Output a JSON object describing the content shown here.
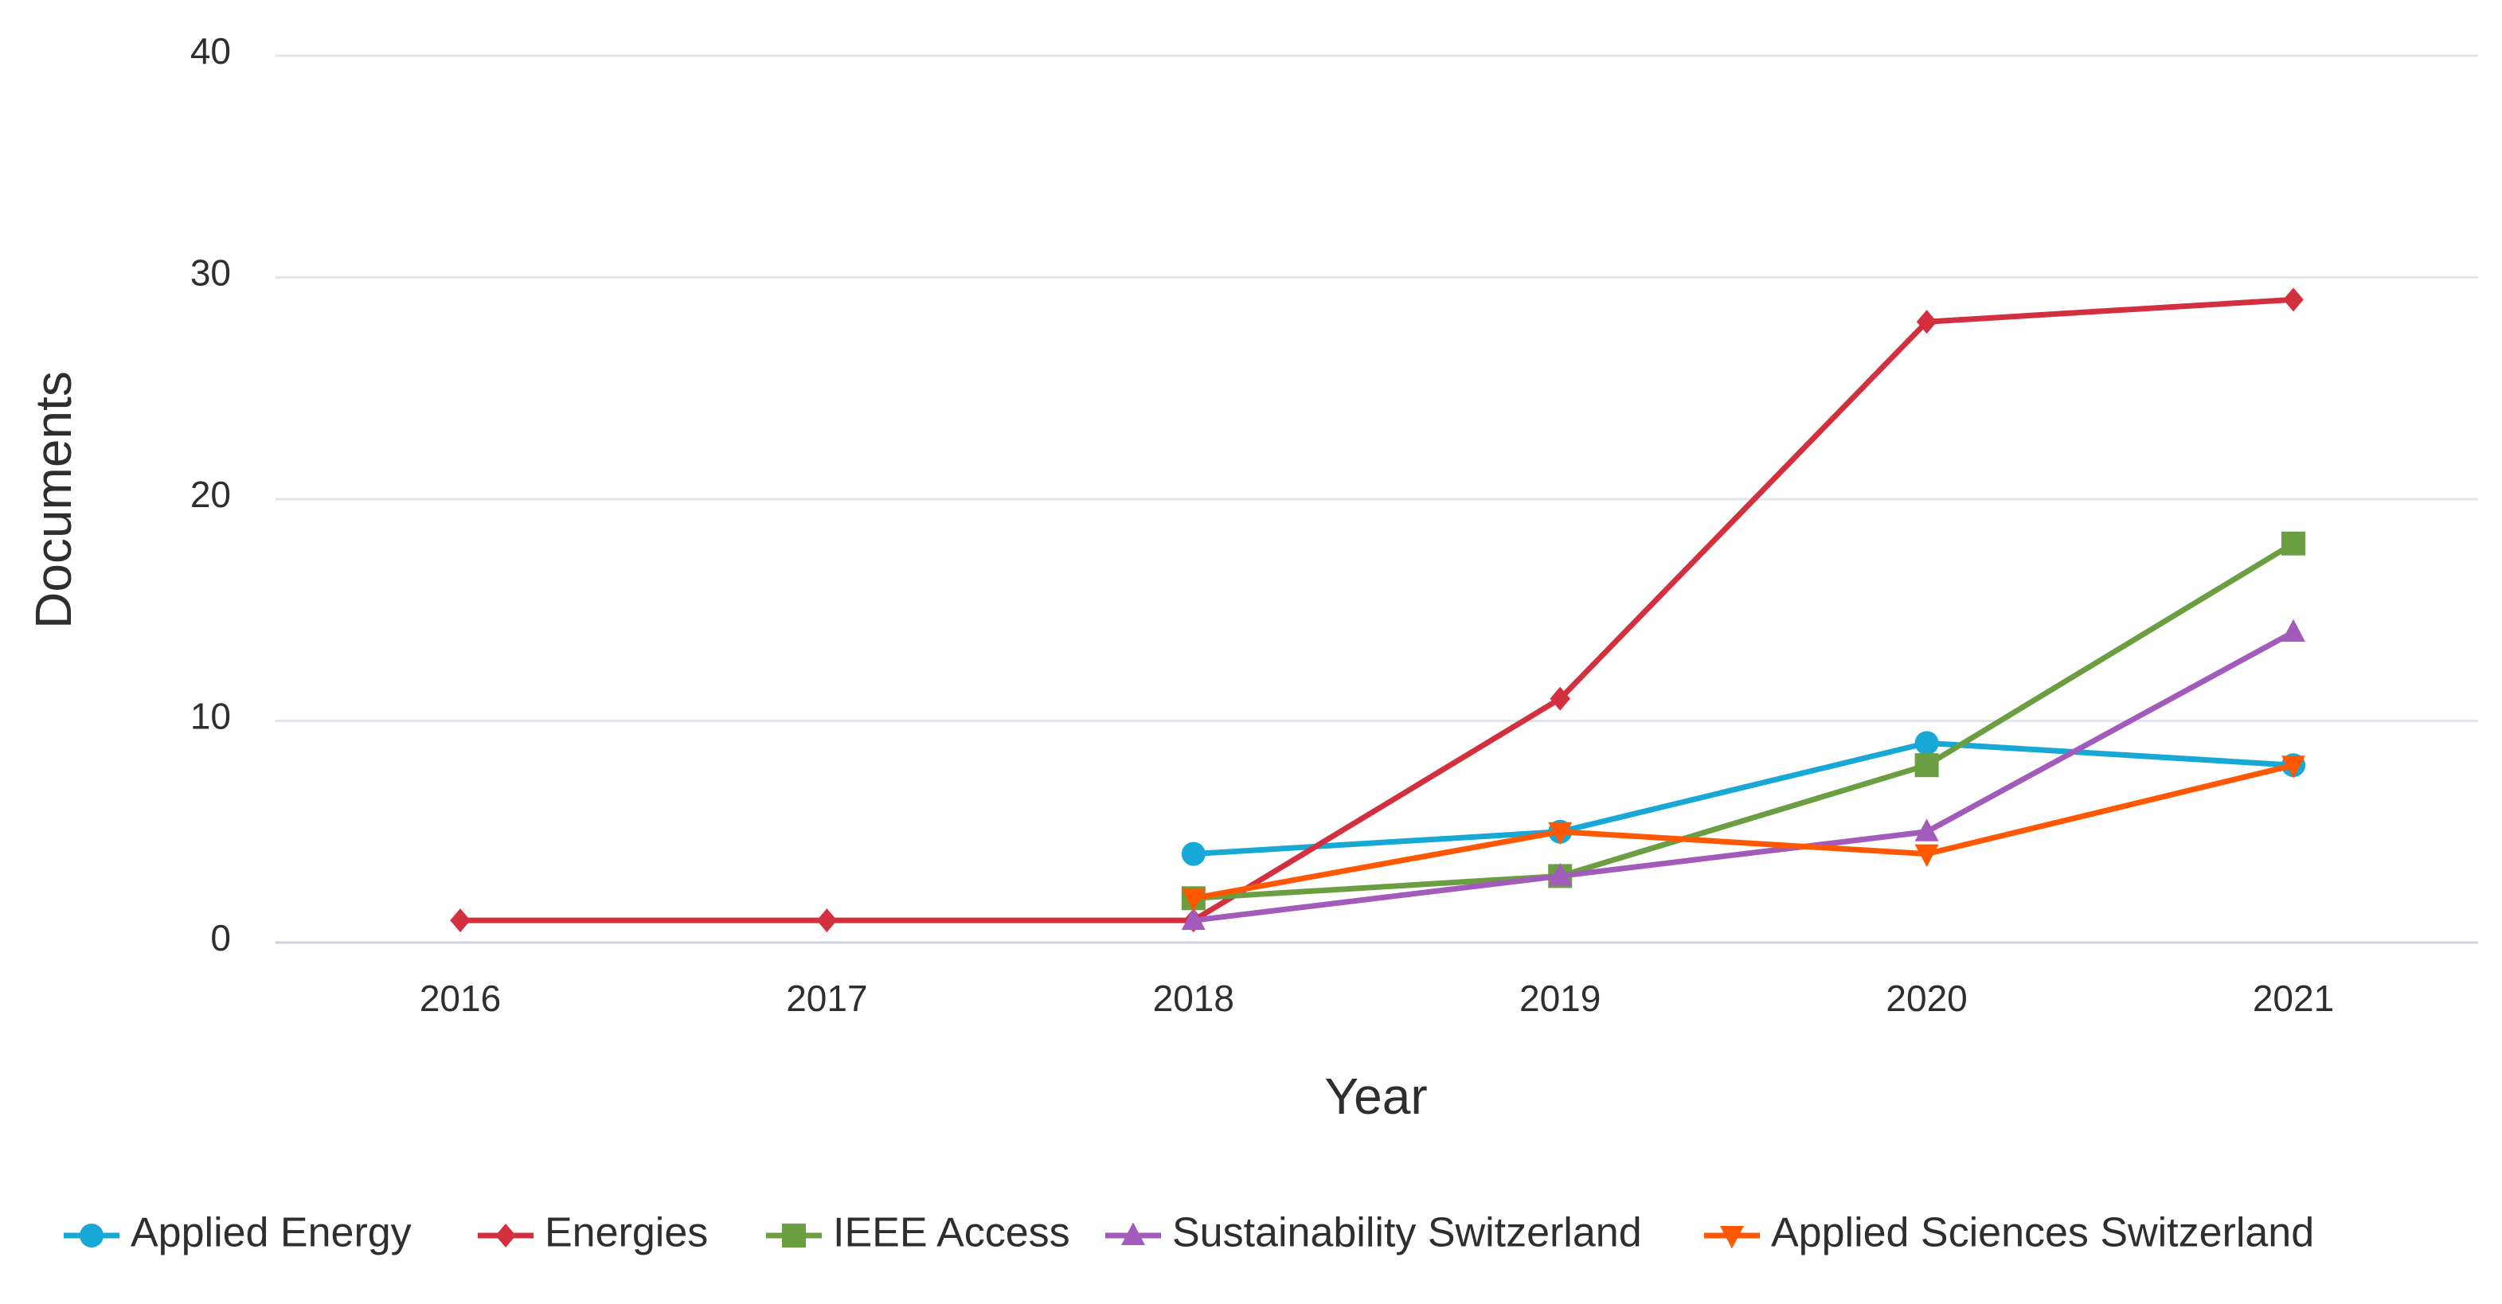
{
  "chart_data": {
    "type": "line",
    "categories": [
      "2016",
      "2017",
      "2018",
      "2019",
      "2020",
      "2021"
    ],
    "series": [
      {
        "name": "Applied Energy",
        "color": "#17a8d6",
        "marker": "circle",
        "values": [
          null,
          null,
          4,
          5,
          9,
          8
        ]
      },
      {
        "name": "Energies",
        "color": "#d3303f",
        "marker": "diamond",
        "values": [
          1,
          1,
          1,
          11,
          28,
          29
        ]
      },
      {
        "name": "IEEE Access",
        "color": "#6a9e40",
        "marker": "square",
        "values": [
          null,
          null,
          2,
          3,
          8,
          18
        ]
      },
      {
        "name": "Sustainability Switzerland",
        "color": "#a35bbb",
        "marker": "triangle-up",
        "values": [
          null,
          null,
          1,
          3,
          5,
          14
        ]
      },
      {
        "name": "Applied Sciences Switzerland",
        "color": "#ff5800",
        "marker": "triangle-down",
        "values": [
          null,
          null,
          2,
          5,
          4,
          8
        ]
      }
    ],
    "ylim": [
      0,
      40
    ],
    "yticks": [
      0,
      10,
      20,
      30,
      40
    ],
    "xlabel": "Year",
    "ylabel": "Documents",
    "grid": true,
    "legend": "bottom"
  }
}
